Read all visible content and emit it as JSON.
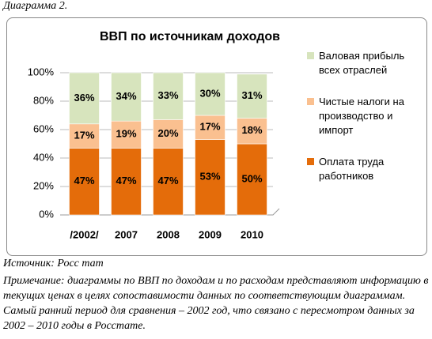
{
  "caption": "Диаграмма 2.",
  "chart_data": {
    "type": "stacked_bar",
    "title": "ВВП по источникам доходов",
    "categories": [
      "/2002/",
      "2007",
      "2008",
      "2009",
      "2010"
    ],
    "series": [
      {
        "name": "Оплата труда работников",
        "color": "#e46c0a",
        "values": [
          47,
          47,
          47,
          53,
          50
        ],
        "value_labels": [
          "47%",
          "47%",
          "47%",
          "53%",
          "50%"
        ]
      },
      {
        "name": "Чистые налоги на производство и импорт",
        "color": "#fac090",
        "values": [
          17,
          19,
          20,
          17,
          18
        ],
        "value_labels": [
          "17%",
          "19%",
          "20%",
          "17%",
          "18%"
        ]
      },
      {
        "name": "Валовая прибыль всех отраслей",
        "color": "#d7e4bd",
        "values": [
          36,
          34,
          33,
          30,
          31
        ],
        "value_labels": [
          "36%",
          "34%",
          "33%",
          "30%",
          "31%"
        ]
      }
    ],
    "ylim": [
      0,
      100
    ],
    "yticks": [
      {
        "value": 0,
        "label": "0%"
      },
      {
        "value": 20,
        "label": "20%"
      },
      {
        "value": 40,
        "label": "40%"
      },
      {
        "value": 60,
        "label": "60%"
      },
      {
        "value": 80,
        "label": "80%"
      },
      {
        "value": 100,
        "label": "100%"
      }
    ],
    "grid": true,
    "legend": "right"
  },
  "source": "Источник: Росс тат",
  "note": "Примечание: диаграммы по ВВП по доходам и по расходам представляют информацию в текущих ценах в целях сопоставимости данных по соответствующим диаграммам. Самый ранний период для сравнения – 2002 год, что связано с пересмотром данных за 2002 – 2010 годы в Росстате."
}
